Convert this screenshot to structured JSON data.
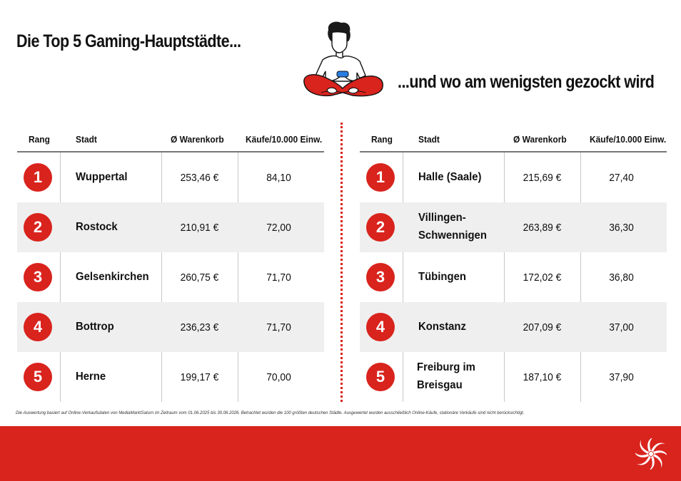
{
  "header": {
    "title_left": "Die Top 5 Gaming-Hauptstädte...",
    "title_right": "...und wo am wenigsten gezockt wird"
  },
  "columns": {
    "rank": "Rang",
    "city": "Stadt",
    "basket": "Ø Warenkorb",
    "purchases": "Käufe/10.000 Einw."
  },
  "top": [
    {
      "rank": "1",
      "city": "Wuppertal",
      "basket": "253,46 €",
      "purchases": "84,10"
    },
    {
      "rank": "2",
      "city": "Rostock",
      "basket": "210,91 €",
      "purchases": "72,00"
    },
    {
      "rank": "3",
      "city": "Gelsenkirchen",
      "basket": "260,75 €",
      "purchases": "71,70"
    },
    {
      "rank": "4",
      "city": "Bottrop",
      "basket": "236,23 €",
      "purchases": "71,70"
    },
    {
      "rank": "5",
      "city": "Herne",
      "basket": "199,17 €",
      "purchases": "70,00"
    }
  ],
  "bottom": [
    {
      "rank": "1",
      "city": "Halle (Saale)",
      "basket": "215,69 €",
      "purchases": "27,40"
    },
    {
      "rank": "2",
      "city": "Villingen-Schwennigen",
      "basket": "263,89 €",
      "purchases": "36,30"
    },
    {
      "rank": "3",
      "city": "Tübingen",
      "basket": "172,02 €",
      "purchases": "36,80"
    },
    {
      "rank": "4",
      "city": "Konstanz",
      "basket": "207,09 €",
      "purchases": "37,00"
    },
    {
      "rank": "5",
      "city": "Freiburg im Breisgau",
      "basket": "187,10 €",
      "purchases": "37,90"
    }
  ],
  "footnote": "Die Auswertung basiert auf Online-Verkaufsdaten von MediaMarktSaturn im Zeitraum vom 01.06.2025 bis 30.06.2026. Betrachtet wurden die 100 größten deutschen Städte. Ausgewertet wurden ausschließlich Online-Käufe, stationäre Verkäufe sind nicht berücksichtigt.",
  "colors": {
    "accent": "#d9231d",
    "row_shade": "#efefef"
  },
  "icons": {
    "illustration": "gamer-illustration-icon",
    "brand": "spiral-logo-icon"
  }
}
